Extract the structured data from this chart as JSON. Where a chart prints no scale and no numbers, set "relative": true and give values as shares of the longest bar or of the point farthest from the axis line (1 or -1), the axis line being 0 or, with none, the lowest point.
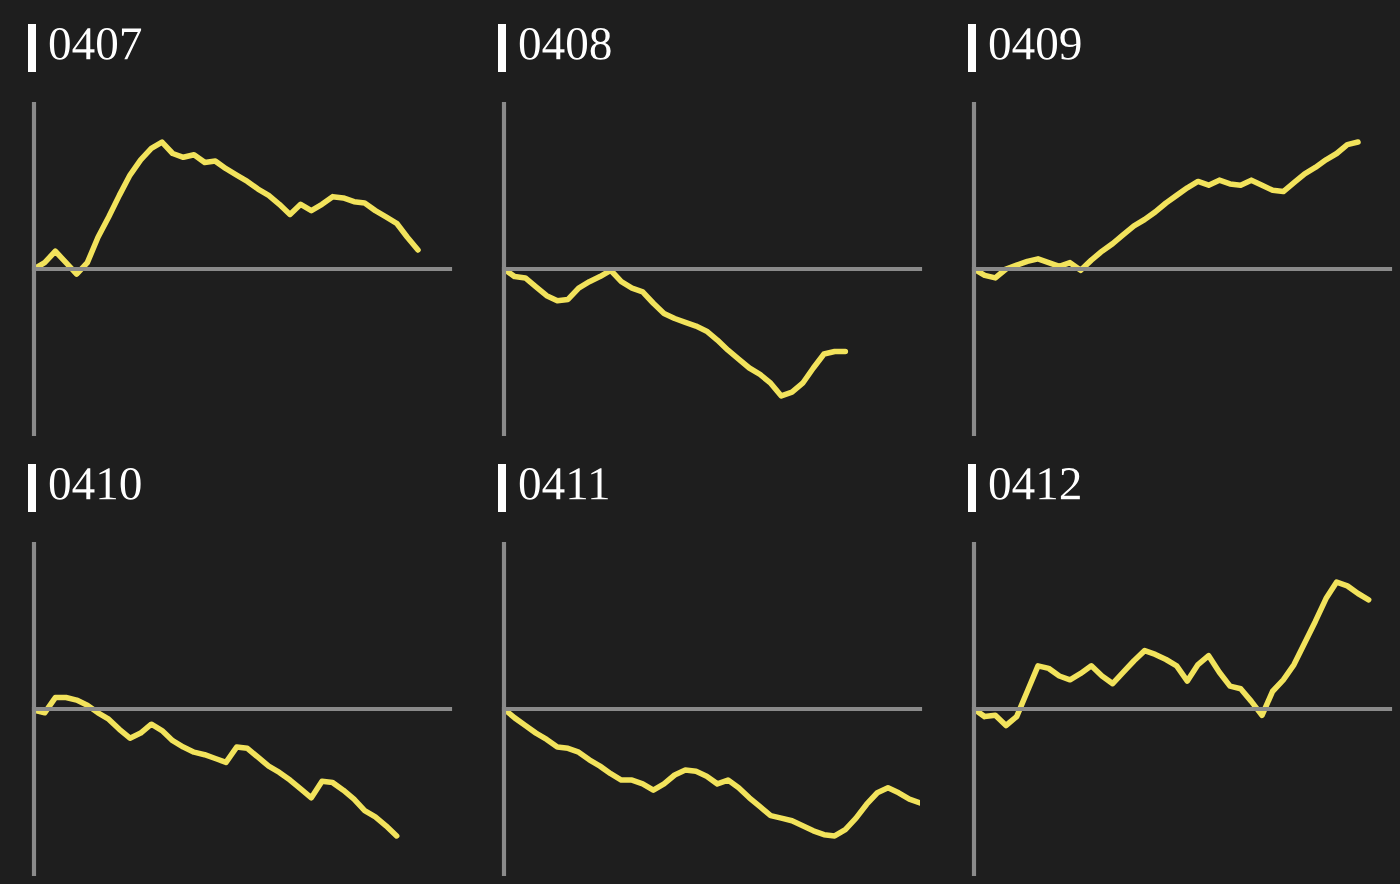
{
  "chart_data": [
    {
      "type": "line",
      "title": "0407",
      "relative": true,
      "categories": [
        null,
        null,
        null,
        null,
        null,
        null,
        null,
        null,
        null,
        null,
        null,
        null,
        null,
        null,
        null,
        null,
        null,
        null,
        null,
        null,
        null,
        null,
        null,
        null,
        null,
        null,
        null,
        null,
        null,
        null,
        null,
        null,
        null,
        null,
        null,
        null,
        null,
        null,
        null,
        null
      ],
      "series": [
        {
          "color": "#f2e35c",
          "values": [
            0,
            0.05,
            0.14,
            0.05,
            -0.04,
            0.05,
            0.25,
            0.41,
            0.58,
            0.74,
            0.86,
            0.95,
            1,
            0.91,
            0.88,
            0.9,
            0.84,
            0.85,
            0.79,
            0.74,
            0.69,
            0.63,
            0.58,
            0.51,
            0.43,
            0.51,
            0.46,
            0.51,
            0.57,
            0.56,
            0.53,
            0.52,
            0.46,
            0.41,
            0.36,
            0.25,
            0.15,
            null,
            null,
            null
          ]
        }
      ]
    },
    {
      "type": "line",
      "title": "0408",
      "relative": true,
      "categories": [
        null,
        null,
        null,
        null,
        null,
        null,
        null,
        null,
        null,
        null,
        null,
        null,
        null,
        null,
        null,
        null,
        null,
        null,
        null,
        null,
        null,
        null,
        null,
        null,
        null,
        null,
        null,
        null,
        null,
        null,
        null,
        null,
        null,
        null,
        null,
        null,
        null,
        null,
        null,
        null
      ],
      "series": [
        {
          "color": "#f2e35c",
          "values": [
            0,
            -0.06,
            -0.07,
            -0.14,
            -0.21,
            -0.25,
            -0.24,
            -0.15,
            -0.1,
            -0.06,
            -0.01,
            -0.1,
            -0.15,
            -0.18,
            -0.27,
            -0.35,
            -0.39,
            -0.42,
            -0.45,
            -0.49,
            -0.56,
            -0.64,
            -0.71,
            -0.78,
            -0.83,
            -0.9,
            -1,
            -0.97,
            -0.9,
            -0.78,
            -0.67,
            -0.65,
            -0.65,
            null,
            null,
            null,
            null,
            null,
            null,
            null
          ]
        }
      ]
    },
    {
      "type": "line",
      "title": "0409",
      "relative": true,
      "categories": [
        null,
        null,
        null,
        null,
        null,
        null,
        null,
        null,
        null,
        null,
        null,
        null,
        null,
        null,
        null,
        null,
        null,
        null,
        null,
        null,
        null,
        null,
        null,
        null,
        null,
        null,
        null,
        null,
        null,
        null,
        null,
        null,
        null,
        null,
        null,
        null,
        null,
        null,
        null,
        null
      ],
      "series": [
        {
          "color": "#f2e35c",
          "values": [
            0,
            -0.05,
            -0.07,
            0,
            0.03,
            0.06,
            0.08,
            0.05,
            0.02,
            0.05,
            -0.01,
            0.07,
            0.14,
            0.2,
            0.27,
            0.34,
            0.39,
            0.45,
            0.52,
            0.58,
            0.64,
            0.69,
            0.66,
            0.7,
            0.67,
            0.66,
            0.7,
            0.66,
            0.62,
            0.61,
            0.68,
            0.75,
            0.8,
            0.86,
            0.91,
            0.98,
            1,
            null,
            null,
            null
          ]
        }
      ]
    },
    {
      "type": "line",
      "title": "0410",
      "relative": true,
      "categories": [
        null,
        null,
        null,
        null,
        null,
        null,
        null,
        null,
        null,
        null,
        null,
        null,
        null,
        null,
        null,
        null,
        null,
        null,
        null,
        null,
        null,
        null,
        null,
        null,
        null,
        null,
        null,
        null,
        null,
        null,
        null,
        null,
        null,
        null,
        null,
        null,
        null,
        null,
        null,
        null
      ],
      "series": [
        {
          "color": "#f2e35c",
          "values": [
            -0.01,
            -0.03,
            0.09,
            0.09,
            0.07,
            0.03,
            -0.03,
            -0.08,
            -0.16,
            -0.23,
            -0.19,
            -0.12,
            -0.17,
            -0.25,
            -0.3,
            -0.34,
            -0.36,
            -0.39,
            -0.42,
            -0.3,
            -0.31,
            -0.38,
            -0.45,
            -0.5,
            -0.56,
            -0.63,
            -0.7,
            -0.57,
            -0.58,
            -0.64,
            -0.71,
            -0.8,
            -0.85,
            -0.92,
            -1,
            null,
            null,
            null,
            null,
            null
          ]
        }
      ]
    },
    {
      "type": "line",
      "title": "0411",
      "relative": true,
      "categories": [
        null,
        null,
        null,
        null,
        null,
        null,
        null,
        null,
        null,
        null,
        null,
        null,
        null,
        null,
        null,
        null,
        null,
        null,
        null,
        null,
        null,
        null,
        null,
        null,
        null,
        null,
        null,
        null,
        null,
        null,
        null,
        null,
        null,
        null,
        null,
        null,
        null,
        null,
        null,
        null
      ],
      "series": [
        {
          "color": "#f2e35c",
          "values": [
            0,
            -0.07,
            -0.13,
            -0.19,
            -0.24,
            -0.3,
            -0.31,
            -0.34,
            -0.4,
            -0.45,
            -0.51,
            -0.56,
            -0.56,
            -0.59,
            -0.64,
            -0.59,
            -0.52,
            -0.48,
            -0.49,
            -0.53,
            -0.59,
            -0.56,
            -0.62,
            -0.7,
            -0.77,
            -0.84,
            -0.86,
            -0.88,
            -0.92,
            -0.96,
            -0.99,
            -1,
            -0.95,
            -0.86,
            -0.75,
            -0.66,
            -0.62,
            -0.66,
            -0.71,
            -0.74
          ]
        }
      ]
    },
    {
      "type": "line",
      "title": "0412",
      "relative": true,
      "categories": [
        null,
        null,
        null,
        null,
        null,
        null,
        null,
        null,
        null,
        null,
        null,
        null,
        null,
        null,
        null,
        null,
        null,
        null,
        null,
        null,
        null,
        null,
        null,
        null,
        null,
        null,
        null,
        null,
        null,
        null,
        null,
        null,
        null,
        null,
        null,
        null,
        null,
        null,
        null,
        null
      ],
      "series": [
        {
          "color": "#f2e35c",
          "values": [
            0,
            -0.06,
            -0.05,
            -0.13,
            -0.06,
            0.14,
            0.34,
            0.32,
            0.26,
            0.23,
            0.28,
            0.34,
            0.26,
            0.2,
            0.29,
            0.38,
            0.46,
            0.43,
            0.39,
            0.34,
            0.22,
            0.35,
            0.42,
            0.29,
            0.18,
            0.16,
            0.06,
            -0.05,
            0.14,
            0.23,
            0.35,
            0.52,
            0.69,
            0.87,
            1,
            0.97,
            0.91,
            0.86,
            null,
            null
          ]
        }
      ]
    }
  ]
}
